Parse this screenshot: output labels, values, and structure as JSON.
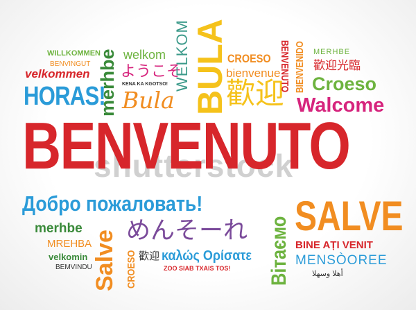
{
  "words": {
    "willkommen": "WILLKOMMEN",
    "benvingut": "BENVINGUT",
    "velkommen": "velkommen",
    "horas": "HORAS!",
    "merhbe_vert": "merhbe",
    "welkom_small": "welkom",
    "youkoso": "ようこそ",
    "kena": "KENA KA KGOTSO!",
    "bula_script": "Bula",
    "welkom_vert": "WELKOM",
    "bula_big": "BULA",
    "croeso_top": "CROESO",
    "bienvenue": "bienvenue",
    "huanying_big": "歡迎",
    "benvenuto_vert": "BENVENUTO",
    "bienvenido_vert": "BIENVENIDO",
    "merhbe_top": "MERHBE",
    "huanying_guanglin": "歡迎光臨",
    "croeso_green": "Croeso",
    "walcome": "Walcome",
    "benvenuto_main": "BENVENUTO",
    "dobro": "Добро пожаловать!",
    "merhbe_green": "merhbe",
    "mrehba": "MREHBA",
    "velkomin": "velkomin",
    "bemvindu": "BEMVINDU",
    "salve_vert": "Salve",
    "menseore": "めんそーれ",
    "croeso_vert": "CROESO",
    "huanying_small": "歡迎",
    "kalos": "καλώς Ορίσατε",
    "zoo": "ZOO SIAB TXAIS TOS!",
    "vitasmo": "Вітаємо",
    "salve_big": "SALVE",
    "bine": "BINE AȚI VENIT",
    "mensoore": "MENSÒOREE",
    "arabic": "أهلا وسهلا"
  },
  "watermark": "shutterstock",
  "colors": {
    "red": "#d7262b",
    "blue": "#2a9bd8",
    "green": "#6db33f",
    "orange": "#f18d21",
    "yellow": "#f5c21b",
    "magenta": "#d6247d",
    "purple": "#7a4a9a",
    "gray": "#777777",
    "teal": "#3c9a8a",
    "darkgreen": "#3a8a3a"
  }
}
